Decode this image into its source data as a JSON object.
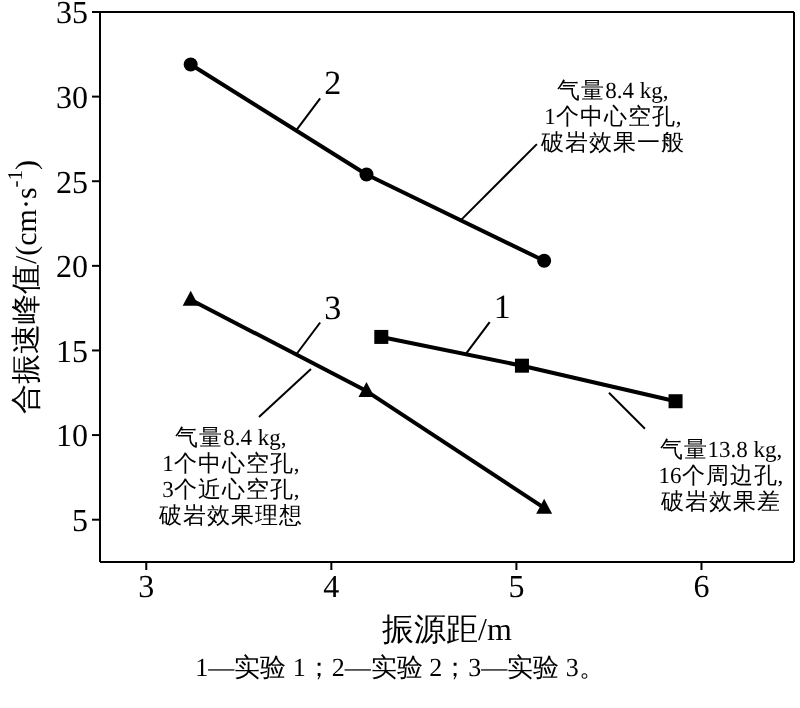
{
  "chart_data": {
    "type": "line",
    "xlabel": "振源距/m",
    "ylabel": "合振速峰值/(cm·s$^{-1}$)",
    "xlim": [
      2.75,
      6.5
    ],
    "xticks": [
      3,
      4,
      5,
      6
    ],
    "ylim": [
      2.5,
      35
    ],
    "yticks": [
      5,
      10,
      15,
      20,
      25,
      30,
      35
    ],
    "grid": false,
    "line_style": "solid",
    "series": [
      {
        "name": "1",
        "color": "#000000",
        "marker": "square",
        "x": [
          4.27,
          5.03,
          5.86
        ],
        "values": [
          15.8,
          14.1,
          12.0
        ]
      },
      {
        "name": "2",
        "color": "#000000",
        "marker": "circle",
        "x": [
          3.24,
          4.19,
          5.15
        ],
        "values": [
          31.9,
          25.4,
          20.3
        ]
      },
      {
        "name": "3",
        "color": "#000000",
        "marker": "triangle",
        "x": [
          3.24,
          4.19,
          5.15
        ],
        "values": [
          18.0,
          12.6,
          5.7
        ]
      }
    ],
    "annotations": [
      {
        "text": "气量8.4 kg,\n1个中心空孔,\n破岩效果一般",
        "x": 4.7,
        "y": 22.7
      },
      {
        "text": "气量8.4 kg,\n1个中心空孔,\n3个近心空孔,\n破岩效果理想",
        "x": 3.89,
        "y": 13.9
      },
      {
        "text": "气量13.8 kg,\n16个周边孔,\n破岩效果差",
        "x": 5.5,
        "y": 12.5
      },
      "1—实验 1；2—实验 2；3—实验 3。"
    ]
  }
}
